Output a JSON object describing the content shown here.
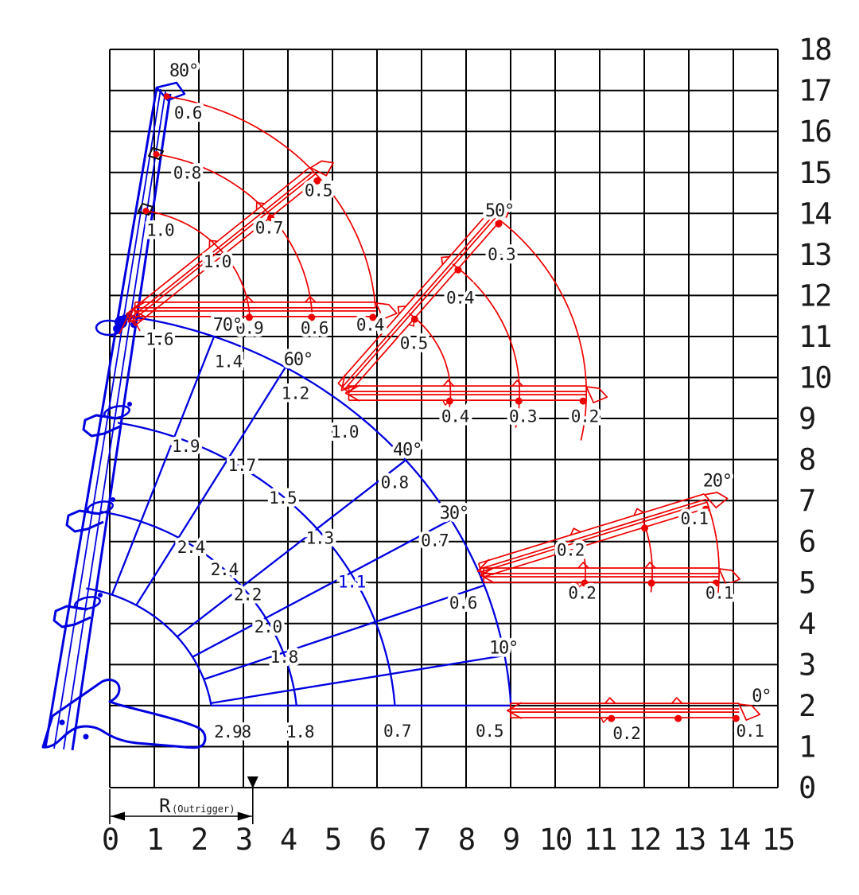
{
  "colors": {
    "main_boom": "#0000e0",
    "jib": "#ee0000",
    "grid": "#000000",
    "text": "#1a1a1a",
    "highlight_text": "#0000e0"
  },
  "axes": {
    "x_ticks": [
      "0",
      "1",
      "2",
      "3",
      "4",
      "5",
      "6",
      "7",
      "8",
      "9",
      "10",
      "11",
      "12",
      "13",
      "14",
      "15"
    ],
    "y_ticks": [
      "0",
      "1",
      "2",
      "3",
      "4",
      "5",
      "6",
      "7",
      "8",
      "9",
      "10",
      "11",
      "12",
      "13",
      "14",
      "15",
      "16",
      "17",
      "18"
    ],
    "x_range": [
      0,
      15
    ],
    "y_range": [
      0,
      18
    ]
  },
  "dimension": {
    "label": "R",
    "sub_label": "(Outrigger)",
    "from_x": 0,
    "to_x": 3.21
  },
  "chart_data": {
    "type": "crane-working-range-load-chart",
    "grid": {
      "x_range": [
        0,
        15
      ],
      "y_range": [
        0,
        18
      ],
      "grid_on": true
    },
    "main_boom_fan": {
      "pivot": [
        -1.13,
        1.46
      ],
      "boom_angle_deg": 80,
      "radial_angles_deg": [
        70,
        60,
        40,
        30,
        20,
        10
      ],
      "arcs": [
        {
          "r": 3.45,
          "a0": 80,
          "a1": 9.2
        },
        {
          "r": 5.35,
          "a0": 80,
          "a1": 5.9
        },
        {
          "r": 7.55,
          "a0": 80,
          "a1": 4.2
        },
        {
          "r": 10.15,
          "a0": 82,
          "a1": 3.2
        }
      ],
      "ground_line": {
        "y": 2.0,
        "x0": 2.27,
        "x1": 8.99
      },
      "angle_labels": [
        {
          "t": "80°",
          "x": 1.66,
          "y": 17.48
        },
        {
          "t": "70°",
          "x": 2.64,
          "y": 11.28
        },
        {
          "t": "60°",
          "x": 4.23,
          "y": 10.44
        },
        {
          "t": "40°",
          "x": 6.68,
          "y": 8.23
        },
        {
          "t": "30°",
          "x": 7.73,
          "y": 6.69
        },
        {
          "t": "10°",
          "x": 8.84,
          "y": 3.4
        }
      ],
      "capacity_labels": [
        {
          "t": "1.6",
          "x": 1.11,
          "y": 10.93
        },
        {
          "t": "1.4",
          "x": 2.66,
          "y": 10.39
        },
        {
          "t": "1.2",
          "x": 4.16,
          "y": 9.61
        },
        {
          "t": "1.0",
          "x": 5.27,
          "y": 8.67
        },
        {
          "t": "0.8",
          "x": 6.39,
          "y": 7.44
        },
        {
          "t": "0.7",
          "x": 7.29,
          "y": 6.02
        },
        {
          "t": "0.6",
          "x": 7.93,
          "y": 4.5
        },
        {
          "t": "1.9",
          "x": 1.7,
          "y": 8.32
        },
        {
          "t": "1.7",
          "x": 2.96,
          "y": 7.86
        },
        {
          "t": "1.5",
          "x": 3.88,
          "y": 7.06
        },
        {
          "t": "1.3",
          "x": 4.71,
          "y": 6.08
        },
        {
          "t": "1.1",
          "x": 5.43,
          "y": 5.01,
          "highlight": true
        },
        {
          "t": "2.4",
          "x": 1.82,
          "y": 5.86
        },
        {
          "t": "2.4",
          "x": 2.57,
          "y": 5.32
        },
        {
          "t": "2.2",
          "x": 3.09,
          "y": 4.7
        },
        {
          "t": "2.0",
          "x": 3.55,
          "y": 3.92
        },
        {
          "t": "1.8",
          "x": 3.91,
          "y": 3.18
        },
        {
          "t": "2.98",
          "x": 2.75,
          "y": 1.36
        },
        {
          "t": "1.8",
          "x": 4.27,
          "y": 1.36
        },
        {
          "t": "0.7",
          "x": 6.45,
          "y": 1.38
        },
        {
          "t": "0.5",
          "x": 8.52,
          "y": 1.38
        }
      ]
    },
    "jib_fans": [
      {
        "name": "jib-at-80",
        "pivot": [
          0.35,
          11.3
        ],
        "upper_boom_deg": 41,
        "marks_on_main_boom_deg": 80.5,
        "radii": [
          2.8,
          4.2,
          5.63
        ],
        "arc_span": [
          80,
          4
        ],
        "horizontal_y_offset": 0.36,
        "angle_label": null,
        "capacity_labels": [
          {
            "t": "0.6",
            "x": 1.75,
            "y": 16.45
          },
          {
            "t": "0.8",
            "x": 1.73,
            "y": 14.99
          },
          {
            "t": "1.0",
            "x": 1.13,
            "y": 13.59
          },
          {
            "t": "0.5",
            "x": 4.68,
            "y": 14.56
          },
          {
            "t": "0.7",
            "x": 3.57,
            "y": 13.65
          },
          {
            "t": "1.0",
            "x": 2.41,
            "y": 12.82
          },
          {
            "t": "0.9",
            "x": 3.13,
            "y": 11.2
          },
          {
            "t": "0.6",
            "x": 4.59,
            "y": 11.2
          },
          {
            "t": "0.4",
            "x": 5.84,
            "y": 11.28
          }
        ]
      },
      {
        "name": "jib-at-50",
        "pivot": [
          5.15,
          9.62
        ],
        "upper_boom_deg": 51,
        "radii": [
          2.5,
          4.05,
          5.55
        ],
        "arc_span": [
          51,
          -12
        ],
        "horizontal_y_offset": 0,
        "angle_label": {
          "t": "50°",
          "x": 8.75,
          "y": 14.06
        },
        "capacity_labels": [
          {
            "t": "0.3",
            "x": 8.79,
            "y": 13.0
          },
          {
            "t": "0.4",
            "x": 7.86,
            "y": 11.94
          },
          {
            "t": "0.5",
            "x": 6.82,
            "y": 10.83
          },
          {
            "t": "0.4",
            "x": 7.75,
            "y": 9.05
          },
          {
            "t": "0.3",
            "x": 9.27,
            "y": 9.05
          },
          {
            "t": "0.2",
            "x": 10.66,
            "y": 9.05
          }
        ]
      },
      {
        "name": "jib-at-20",
        "pivot": [
          8.18,
          5.25
        ],
        "upper_boom_deg": 18.5,
        "radii": [
          2.5,
          4.0,
          5.5
        ],
        "arc_span": [
          18.5,
          -7
        ],
        "horizontal_y_offset": -0.07,
        "angle_label": {
          "t": "20°",
          "x": 13.64,
          "y": 7.48
        },
        "capacity_labels": [
          {
            "t": "0.1",
            "x": 13.12,
            "y": 6.56
          },
          {
            "t": "0.2",
            "x": 10.34,
            "y": 5.79
          },
          {
            "t": "0.2",
            "x": 10.6,
            "y": 4.74
          },
          {
            "t": "0.1",
            "x": 13.68,
            "y": 4.74
          }
        ]
      },
      {
        "name": "jib-at-0",
        "pivot": [
          8.78,
          1.88
        ],
        "upper_boom_deg": null,
        "radii": [
          2.5,
          4.0,
          5.35
        ],
        "arc_span": null,
        "horizontal_y_offset": 0,
        "angle_label": {
          "t": "0°",
          "x": 14.63,
          "y": 2.23
        },
        "capacity_labels": [
          {
            "t": "0.2",
            "x": 11.6,
            "y": 1.32
          },
          {
            "t": "0.1",
            "x": 14.37,
            "y": 1.38
          }
        ]
      }
    ]
  }
}
